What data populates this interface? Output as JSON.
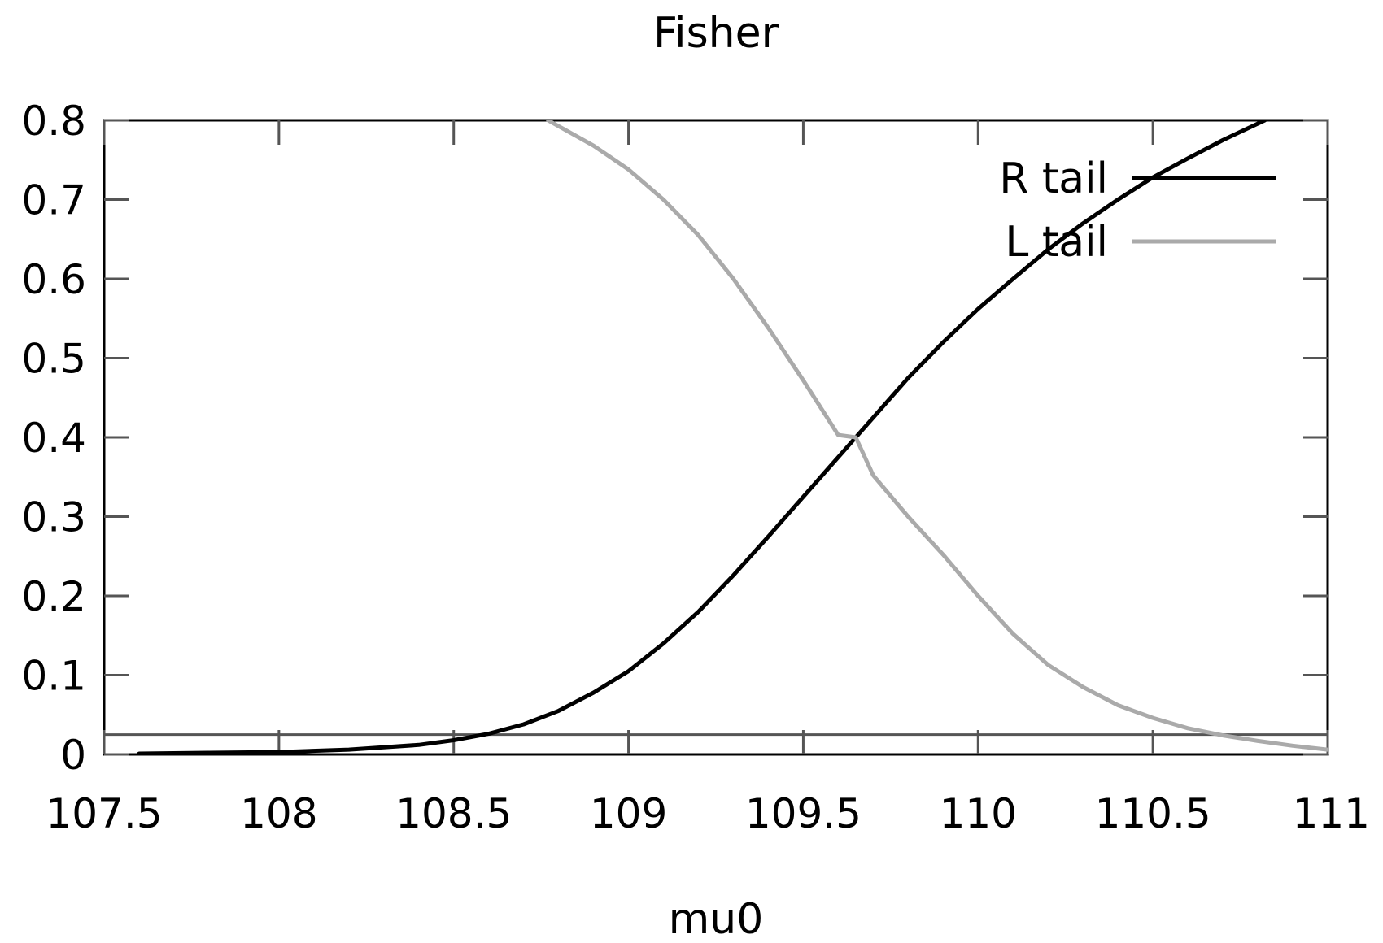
{
  "chart_data": {
    "type": "line",
    "title": "Fisher",
    "xlabel": "mu0",
    "ylabel": "",
    "xlim": [
      107.5,
      111
    ],
    "ylim": [
      0,
      0.8
    ],
    "xticks": [
      "107.5",
      "108",
      "108.5",
      "109",
      "109.5",
      "110",
      "110.5",
      "111"
    ],
    "yticks": [
      "0",
      "0.1",
      "0.2",
      "0.3",
      "0.4",
      "0.5",
      "0.6",
      "0.7",
      "0.8"
    ],
    "legend_position": "top-right",
    "reference_line": {
      "y": 0.025,
      "color": "#555555"
    },
    "series": [
      {
        "name": "R tail",
        "color": "#000000",
        "x": [
          107.6,
          107.8,
          108.0,
          108.2,
          108.4,
          108.5,
          108.6,
          108.7,
          108.8,
          108.9,
          109.0,
          109.1,
          109.2,
          109.3,
          109.4,
          109.5,
          109.6,
          109.65,
          109.7,
          109.8,
          109.9,
          110.0,
          110.1,
          110.2,
          110.3,
          110.4,
          110.5,
          110.6,
          110.7,
          110.82
        ],
        "y": [
          0.001,
          0.002,
          0.003,
          0.006,
          0.012,
          0.018,
          0.026,
          0.038,
          0.055,
          0.078,
          0.105,
          0.14,
          0.18,
          0.226,
          0.275,
          0.325,
          0.375,
          0.4,
          0.425,
          0.475,
          0.52,
          0.562,
          0.6,
          0.637,
          0.67,
          0.7,
          0.728,
          0.752,
          0.775,
          0.8
        ]
      },
      {
        "name": "L tail",
        "color": "#aaaaaa",
        "x": [
          108.77,
          108.9,
          109.0,
          109.1,
          109.2,
          109.3,
          109.4,
          109.5,
          109.6,
          109.65,
          109.7,
          109.8,
          109.9,
          110.0,
          110.1,
          110.2,
          110.3,
          110.4,
          110.5,
          110.6,
          110.7,
          110.8,
          110.9,
          111.0
        ],
        "y": [
          0.8,
          0.768,
          0.738,
          0.7,
          0.655,
          0.6,
          0.538,
          0.472,
          0.403,
          0.4,
          0.352,
          0.3,
          0.252,
          0.2,
          0.152,
          0.113,
          0.085,
          0.062,
          0.046,
          0.033,
          0.024,
          0.017,
          0.011,
          0.006
        ]
      }
    ]
  }
}
